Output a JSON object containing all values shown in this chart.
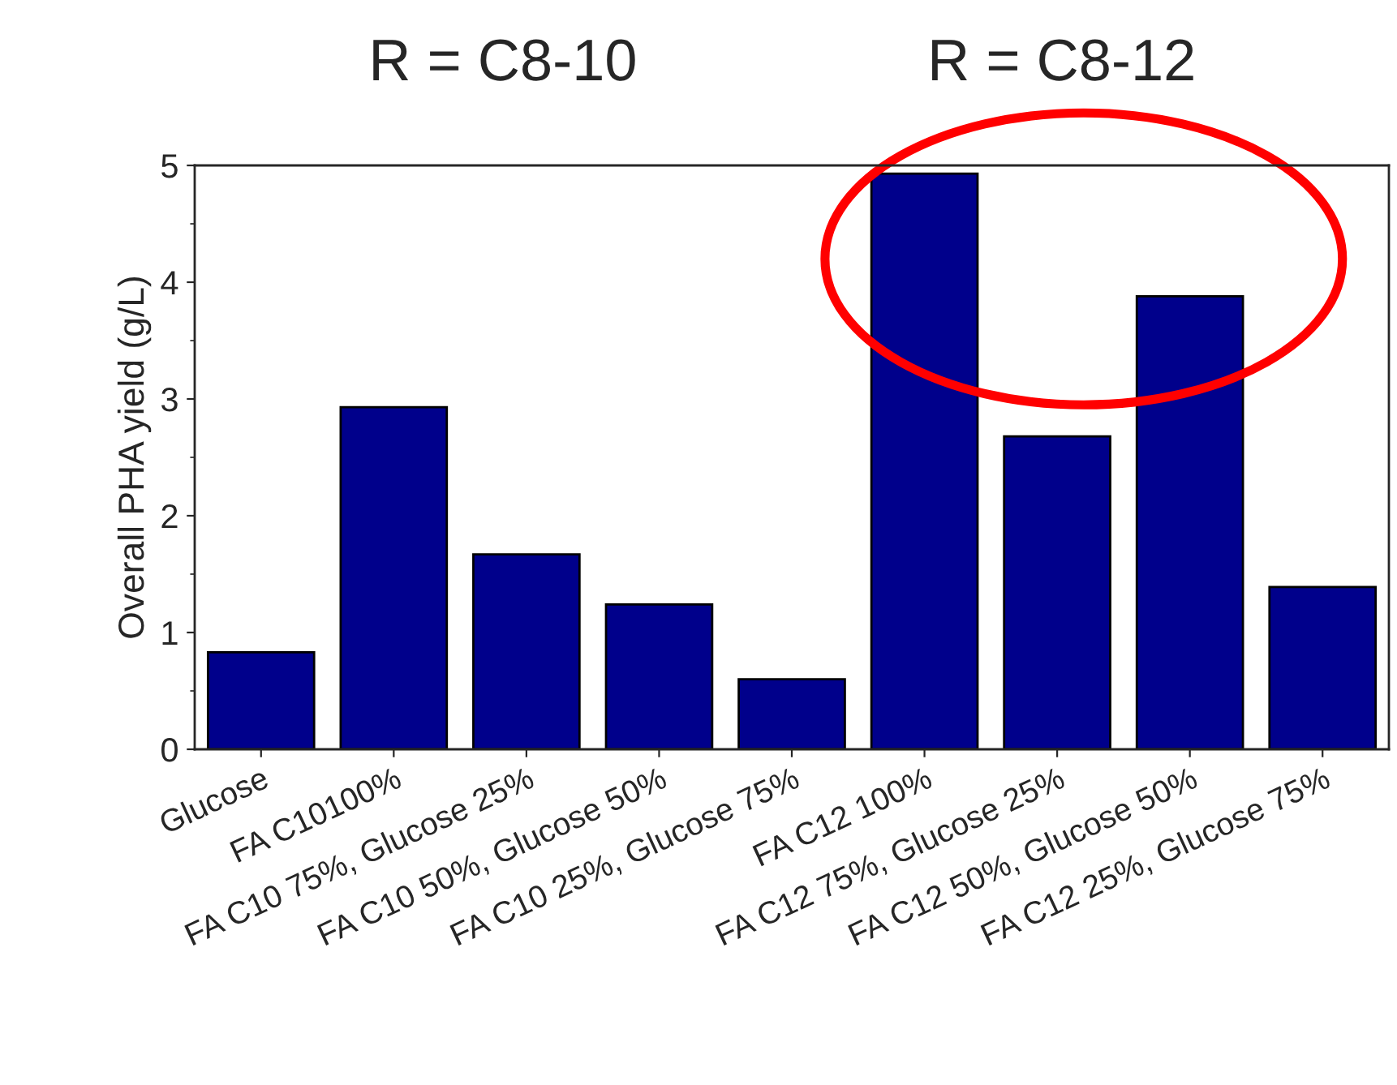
{
  "chart_data": {
    "type": "bar",
    "ylabel": "Overall PHA yield (g/L)",
    "categories": [
      "Glucose",
      "FA C10100%",
      "FA C10 75%, Glucose 25%",
      "FA C10 50%, Glucose 50%",
      "FA C10 25%, Glucose 75%",
      "FA C12 100%",
      "FA C12 75%, Glucose 25%",
      "FA C12 50%, Glucose 50%",
      "FA C12 25%, Glucose 75%"
    ],
    "series": [
      {
        "color": "#00008b",
        "values": [
          0.83,
          2.93,
          1.67,
          1.24,
          0.6,
          4.93,
          2.68,
          3.88,
          1.39
        ]
      }
    ],
    "ylim": [
      0,
      5
    ],
    "yticks": [
      0,
      1,
      2,
      3,
      4,
      5
    ],
    "annotations": [
      "R = C8-10",
      "R = C8-12"
    ],
    "grid": false,
    "legend": false
  }
}
